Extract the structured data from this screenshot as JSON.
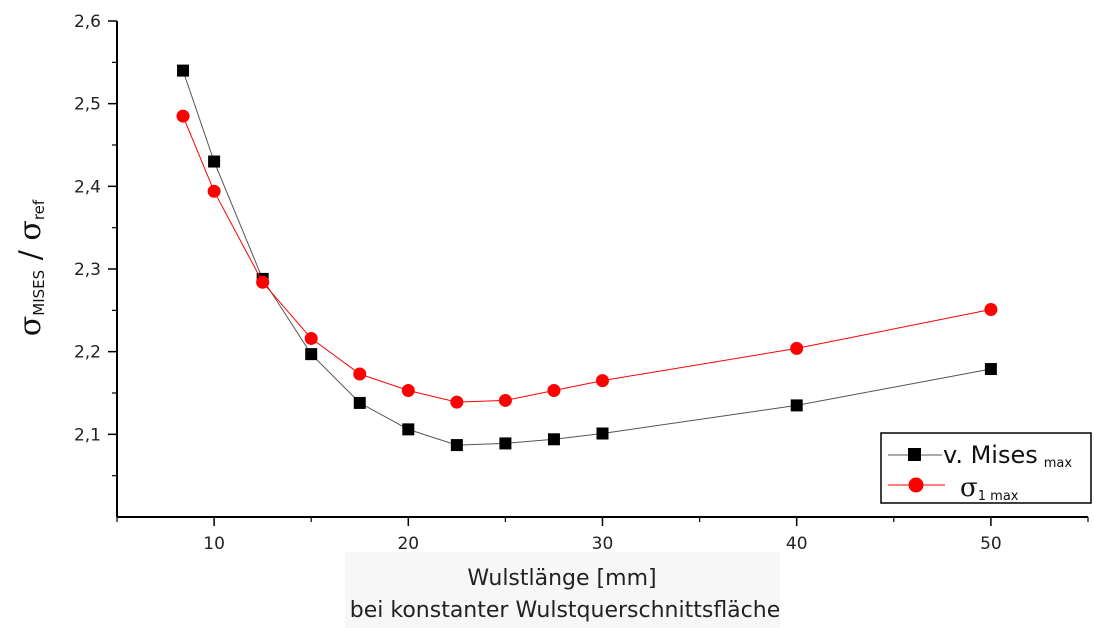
{
  "chart_data": {
    "type": "line",
    "xlabel": "Wulstlänge [mm]",
    "xlabel_sub": "bei konstanter Wulstquerschnittsfläche",
    "ylabel": {
      "sym1": "σ",
      "sub1": "MISES",
      "sep": " / ",
      "sym2": "σ",
      "sub2": "ref"
    },
    "xlim": [
      5,
      55
    ],
    "ylim": [
      2.0,
      2.6
    ],
    "x_ticks": [
      10,
      20,
      30,
      40,
      50
    ],
    "x_tick_labels": [
      "10",
      "20",
      "30",
      "40",
      "50"
    ],
    "y_ticks": [
      2.1,
      2.2,
      2.3,
      2.4,
      2.5,
      2.6
    ],
    "y_tick_labels": [
      "2,1",
      "2,2",
      "2,3",
      "2,4",
      "2,5",
      "2,6"
    ],
    "grid": false,
    "legend_position": "bottom-right",
    "series": [
      {
        "name": "v. Mises",
        "name_sub": "max",
        "color": "#000000",
        "line_color": "#555555",
        "marker": "square",
        "x": [
          8.4,
          10,
          12.5,
          15,
          17.5,
          20,
          22.5,
          25,
          27.5,
          30,
          40,
          50
        ],
        "y": [
          2.54,
          2.43,
          2.288,
          2.197,
          2.138,
          2.106,
          2.087,
          2.089,
          2.094,
          2.101,
          2.135,
          2.179
        ]
      },
      {
        "name": "σ",
        "name_sub": "1 max",
        "color": "#ff0000",
        "line_color": "#ff0000",
        "marker": "circle",
        "x": [
          8.4,
          10,
          12.5,
          15,
          17.5,
          20,
          22.5,
          25,
          27.5,
          30,
          40,
          50
        ],
        "y": [
          2.485,
          2.394,
          2.284,
          2.216,
          2.173,
          2.153,
          2.139,
          2.141,
          2.153,
          2.165,
          2.204,
          2.251
        ]
      }
    ]
  }
}
